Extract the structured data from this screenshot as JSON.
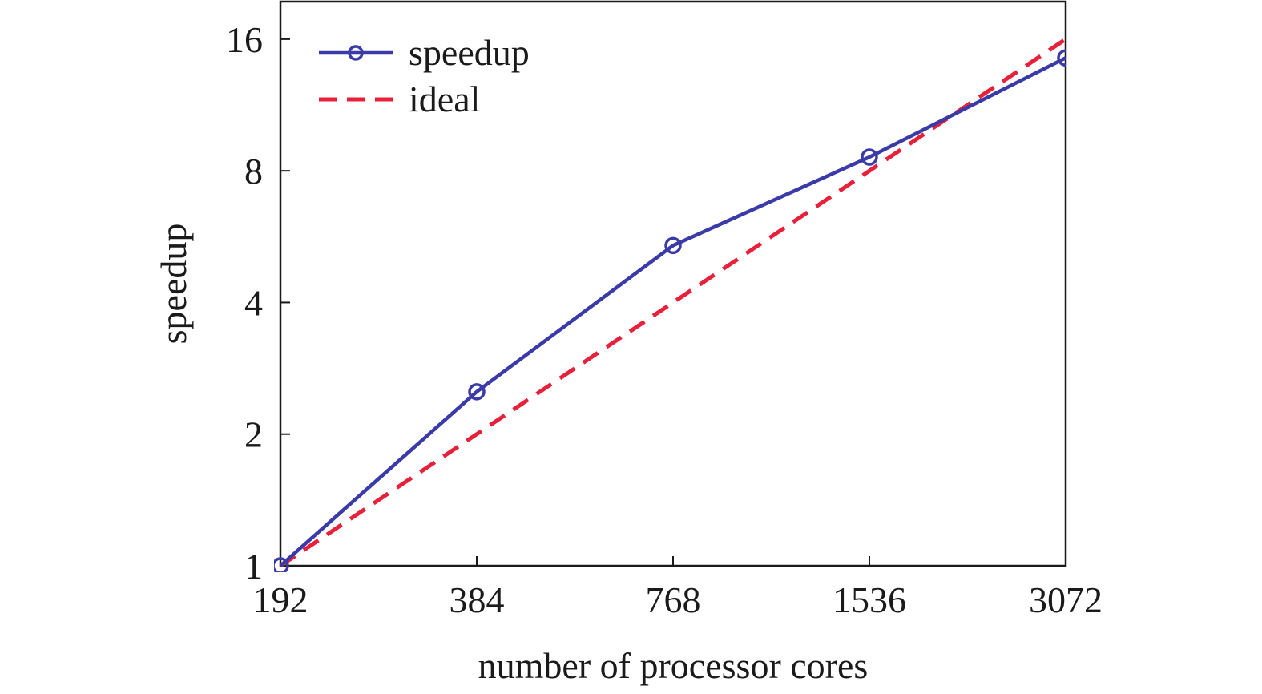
{
  "chart_data": {
    "type": "line",
    "xlabel": "number of processor cores",
    "ylabel": "speedup",
    "x_scale": "log2",
    "y_scale": "log2",
    "x": [
      192,
      384,
      768,
      1536,
      3072
    ],
    "x_tick_labels": [
      "192",
      "384",
      "768",
      "1536",
      "3072"
    ],
    "y_ticks": [
      1,
      2,
      4,
      8,
      16
    ],
    "y_tick_labels": [
      "1",
      "2",
      "4",
      "8",
      "16"
    ],
    "xlim": [
      192,
      3072
    ],
    "ylim": [
      1,
      19.5
    ],
    "grid": false,
    "legend_position": "top-left",
    "series": [
      {
        "name": "speedup",
        "values": [
          1,
          2.5,
          5.4,
          8.6,
          14.5
        ],
        "color": "#3a3aa8",
        "line_style": "solid",
        "marker": "circle"
      },
      {
        "name": "ideal",
        "values": [
          1,
          2,
          4,
          8,
          16
        ],
        "color": "#e8203a",
        "line_style": "dashed",
        "marker": "none"
      }
    ]
  }
}
